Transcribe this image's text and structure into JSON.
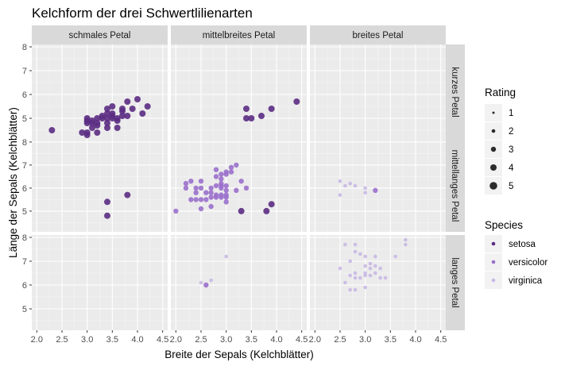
{
  "chart_data": {
    "type": "scatter",
    "title": "Kelchform der drei Schwertlilienarten",
    "xlabel": "Breite der Sepals (Kelchblätter)",
    "ylabel": "Länge der Sepals (Kelchblätter)",
    "xlim": [
      1.9,
      4.6
    ],
    "ylim": [
      4.1,
      8.1
    ],
    "x_ticks": [
      2.0,
      2.5,
      3.0,
      3.5,
      4.0,
      4.5
    ],
    "x_tick_labels": [
      "2.0",
      "2.5",
      "3.0",
      "3.5",
      "4.0",
      "4.5"
    ],
    "y_ticks": [
      5,
      6,
      7,
      8
    ],
    "y_tick_labels": [
      "5",
      "6",
      "7",
      "8"
    ],
    "grid": true,
    "legend_position": "right",
    "col_facets": [
      "schmales Petal",
      "mittelbreites Petal",
      "breites Petal"
    ],
    "row_facets": [
      "kurzes Petal",
      "mittellanges Petal",
      "langes Petal"
    ],
    "size_legend": {
      "title": "Rating",
      "levels": [
        "1",
        "2",
        "3",
        "4",
        "5"
      ]
    },
    "color_legend": {
      "title": "Species",
      "entries": [
        {
          "name": "setosa",
          "color": "#5b2c83"
        },
        {
          "name": "versicolor",
          "color": "#9a70cc"
        },
        {
          "name": "virginica",
          "color": "#c8b8e4"
        }
      ]
    },
    "panels": [
      {
        "row": 0,
        "col": 0,
        "points": [
          [
            2.3,
            4.5,
            "setosa",
            4
          ],
          [
            2.9,
            4.4,
            "setosa",
            4
          ],
          [
            3.0,
            4.3,
            "setosa",
            4
          ],
          [
            3.0,
            4.4,
            "setosa",
            4
          ],
          [
            3.0,
            4.8,
            "setosa",
            4
          ],
          [
            3.0,
            4.9,
            "setosa",
            4
          ],
          [
            3.0,
            5.0,
            "setosa",
            4
          ],
          [
            3.1,
            4.6,
            "setosa",
            4
          ],
          [
            3.1,
            4.8,
            "setosa",
            4
          ],
          [
            3.1,
            4.9,
            "setosa",
            4
          ],
          [
            3.2,
            4.4,
            "setosa",
            4
          ],
          [
            3.2,
            4.7,
            "setosa",
            4
          ],
          [
            3.2,
            4.8,
            "setosa",
            4
          ],
          [
            3.2,
            5.0,
            "setosa",
            4
          ],
          [
            3.3,
            5.0,
            "setosa",
            4
          ],
          [
            3.3,
            5.1,
            "setosa",
            4
          ],
          [
            3.4,
            4.6,
            "setosa",
            4
          ],
          [
            3.4,
            4.8,
            "setosa",
            4
          ],
          [
            3.4,
            5.0,
            "setosa",
            4
          ],
          [
            3.4,
            5.2,
            "setosa",
            4
          ],
          [
            3.4,
            5.4,
            "setosa",
            4
          ],
          [
            3.5,
            5.0,
            "setosa",
            4
          ],
          [
            3.5,
            5.1,
            "setosa",
            4
          ],
          [
            3.5,
            5.2,
            "setosa",
            4
          ],
          [
            3.5,
            5.5,
            "setosa",
            4
          ],
          [
            3.6,
            4.6,
            "setosa",
            4
          ],
          [
            3.6,
            4.9,
            "setosa",
            4
          ],
          [
            3.6,
            5.0,
            "setosa",
            4
          ],
          [
            3.7,
            5.1,
            "setosa",
            4
          ],
          [
            3.7,
            5.3,
            "setosa",
            4
          ],
          [
            3.7,
            5.4,
            "setosa",
            4
          ],
          [
            3.8,
            5.1,
            "setosa",
            4
          ],
          [
            3.8,
            5.7,
            "setosa",
            4
          ],
          [
            3.9,
            5.4,
            "setosa",
            4
          ],
          [
            4.0,
            5.8,
            "setosa",
            4
          ],
          [
            4.1,
            5.2,
            "setosa",
            4
          ],
          [
            4.2,
            5.5,
            "setosa",
            4
          ]
        ]
      },
      {
        "row": 0,
        "col": 1,
        "points": [
          [
            3.4,
            5.0,
            "setosa",
            4
          ],
          [
            3.4,
            5.4,
            "setosa",
            4
          ],
          [
            3.5,
            5.0,
            "setosa",
            4
          ],
          [
            3.7,
            5.1,
            "setosa",
            4
          ],
          [
            3.9,
            5.4,
            "setosa",
            4
          ],
          [
            4.4,
            5.7,
            "setosa",
            4
          ]
        ]
      },
      {
        "row": 0,
        "col": 2,
        "points": []
      },
      {
        "row": 1,
        "col": 0,
        "points": [
          [
            3.4,
            5.4,
            "setosa",
            4
          ],
          [
            3.4,
            4.8,
            "setosa",
            4
          ],
          [
            3.8,
            5.7,
            "setosa",
            4
          ]
        ]
      },
      {
        "row": 1,
        "col": 1,
        "points": [
          [
            2.0,
            5.0,
            "versicolor",
            3
          ],
          [
            2.2,
            6.0,
            "versicolor",
            3
          ],
          [
            2.2,
            6.2,
            "versicolor",
            3
          ],
          [
            2.3,
            5.5,
            "versicolor",
            3
          ],
          [
            2.3,
            6.3,
            "versicolor",
            3
          ],
          [
            2.4,
            5.5,
            "versicolor",
            3
          ],
          [
            2.4,
            5.8,
            "versicolor",
            3
          ],
          [
            2.4,
            6.0,
            "versicolor",
            3
          ],
          [
            2.5,
            5.1,
            "versicolor",
            3
          ],
          [
            2.5,
            5.5,
            "versicolor",
            3
          ],
          [
            2.5,
            6.0,
            "versicolor",
            3
          ],
          [
            2.5,
            6.3,
            "versicolor",
            3
          ],
          [
            2.6,
            5.5,
            "versicolor",
            3
          ],
          [
            2.6,
            5.8,
            "versicolor",
            3
          ],
          [
            2.7,
            5.2,
            "versicolor",
            3
          ],
          [
            2.7,
            5.6,
            "versicolor",
            3
          ],
          [
            2.7,
            5.8,
            "versicolor",
            3
          ],
          [
            2.7,
            6.0,
            "versicolor",
            3
          ],
          [
            2.8,
            5.6,
            "versicolor",
            3
          ],
          [
            2.8,
            5.7,
            "versicolor",
            3
          ],
          [
            2.8,
            6.1,
            "versicolor",
            3
          ],
          [
            2.8,
            6.5,
            "versicolor",
            3
          ],
          [
            2.8,
            6.8,
            "versicolor",
            3
          ],
          [
            2.9,
            5.6,
            "versicolor",
            3
          ],
          [
            2.9,
            5.7,
            "versicolor",
            3
          ],
          [
            2.9,
            6.0,
            "versicolor",
            3
          ],
          [
            2.9,
            6.1,
            "versicolor",
            3
          ],
          [
            2.9,
            6.2,
            "versicolor",
            3
          ],
          [
            2.9,
            6.4,
            "versicolor",
            3
          ],
          [
            2.9,
            6.6,
            "versicolor",
            3
          ],
          [
            3.0,
            5.4,
            "versicolor",
            3
          ],
          [
            3.0,
            5.6,
            "versicolor",
            3
          ],
          [
            3.0,
            5.7,
            "versicolor",
            3
          ],
          [
            3.0,
            5.9,
            "versicolor",
            3
          ],
          [
            3.0,
            6.1,
            "versicolor",
            3
          ],
          [
            3.0,
            6.6,
            "versicolor",
            3
          ],
          [
            3.0,
            6.7,
            "versicolor",
            3
          ],
          [
            3.1,
            6.7,
            "versicolor",
            3
          ],
          [
            3.1,
            6.9,
            "versicolor",
            3
          ],
          [
            3.2,
            5.9,
            "versicolor",
            3
          ],
          [
            3.2,
            7.0,
            "versicolor",
            3
          ],
          [
            3.3,
            6.3,
            "versicolor",
            3
          ],
          [
            3.4,
            6.0,
            "versicolor",
            3
          ],
          [
            3.3,
            5.0,
            "setosa",
            4
          ],
          [
            3.8,
            5.0,
            "setosa",
            4
          ],
          [
            3.9,
            5.3,
            "setosa",
            4
          ]
        ]
      },
      {
        "row": 1,
        "col": 2,
        "points": [
          [
            2.5,
            6.3,
            "virginica",
            2
          ],
          [
            2.5,
            5.7,
            "virginica",
            2
          ],
          [
            2.6,
            6.1,
            "virginica",
            2
          ],
          [
            2.7,
            6.2,
            "virginica",
            2
          ],
          [
            2.8,
            6.1,
            "virginica",
            2
          ],
          [
            3.0,
            6.0,
            "virginica",
            2
          ],
          [
            3.0,
            5.8,
            "virginica",
            2
          ],
          [
            3.2,
            5.9,
            "versicolor",
            3
          ]
        ]
      },
      {
        "row": 2,
        "col": 0,
        "points": []
      },
      {
        "row": 2,
        "col": 1,
        "points": [
          [
            2.5,
            6.1,
            "virginica",
            2
          ],
          [
            2.6,
            6.0,
            "virginica",
            2
          ],
          [
            2.7,
            6.2,
            "virginica",
            2
          ],
          [
            3.0,
            7.2,
            "virginica",
            2
          ],
          [
            2.6,
            6.0,
            "versicolor",
            3
          ]
        ]
      },
      {
        "row": 2,
        "col": 2,
        "points": [
          [
            2.5,
            6.7,
            "virginica",
            2
          ],
          [
            2.6,
            7.7,
            "virginica",
            2
          ],
          [
            2.6,
            6.1,
            "virginica",
            2
          ],
          [
            2.7,
            5.8,
            "virginica",
            2
          ],
          [
            2.7,
            6.4,
            "virginica",
            2
          ],
          [
            2.7,
            7.0,
            "virginica",
            2
          ],
          [
            2.8,
            5.8,
            "virginica",
            2
          ],
          [
            2.8,
            6.3,
            "virginica",
            2
          ],
          [
            2.8,
            6.5,
            "virginica",
            2
          ],
          [
            2.8,
            7.4,
            "virginica",
            2
          ],
          [
            2.8,
            7.7,
            "virginica",
            2
          ],
          [
            2.9,
            6.3,
            "virginica",
            2
          ],
          [
            2.9,
            7.3,
            "virginica",
            2
          ],
          [
            3.0,
            5.9,
            "virginica",
            2
          ],
          [
            3.0,
            6.4,
            "virginica",
            2
          ],
          [
            3.0,
            6.5,
            "virginica",
            2
          ],
          [
            3.0,
            6.8,
            "virginica",
            2
          ],
          [
            3.0,
            7.2,
            "virginica",
            2
          ],
          [
            3.1,
            6.4,
            "virginica",
            2
          ],
          [
            3.1,
            6.7,
            "virginica",
            2
          ],
          [
            3.1,
            6.9,
            "virginica",
            2
          ],
          [
            3.2,
            6.5,
            "virginica",
            2
          ],
          [
            3.2,
            6.8,
            "virginica",
            2
          ],
          [
            3.2,
            7.2,
            "virginica",
            2
          ],
          [
            3.3,
            6.3,
            "virginica",
            2
          ],
          [
            3.3,
            6.7,
            "virginica",
            2
          ],
          [
            3.4,
            6.3,
            "virginica",
            2
          ],
          [
            3.6,
            7.2,
            "virginica",
            2
          ],
          [
            3.8,
            7.7,
            "virginica",
            2
          ],
          [
            3.8,
            7.9,
            "virginica",
            2
          ]
        ]
      }
    ]
  }
}
